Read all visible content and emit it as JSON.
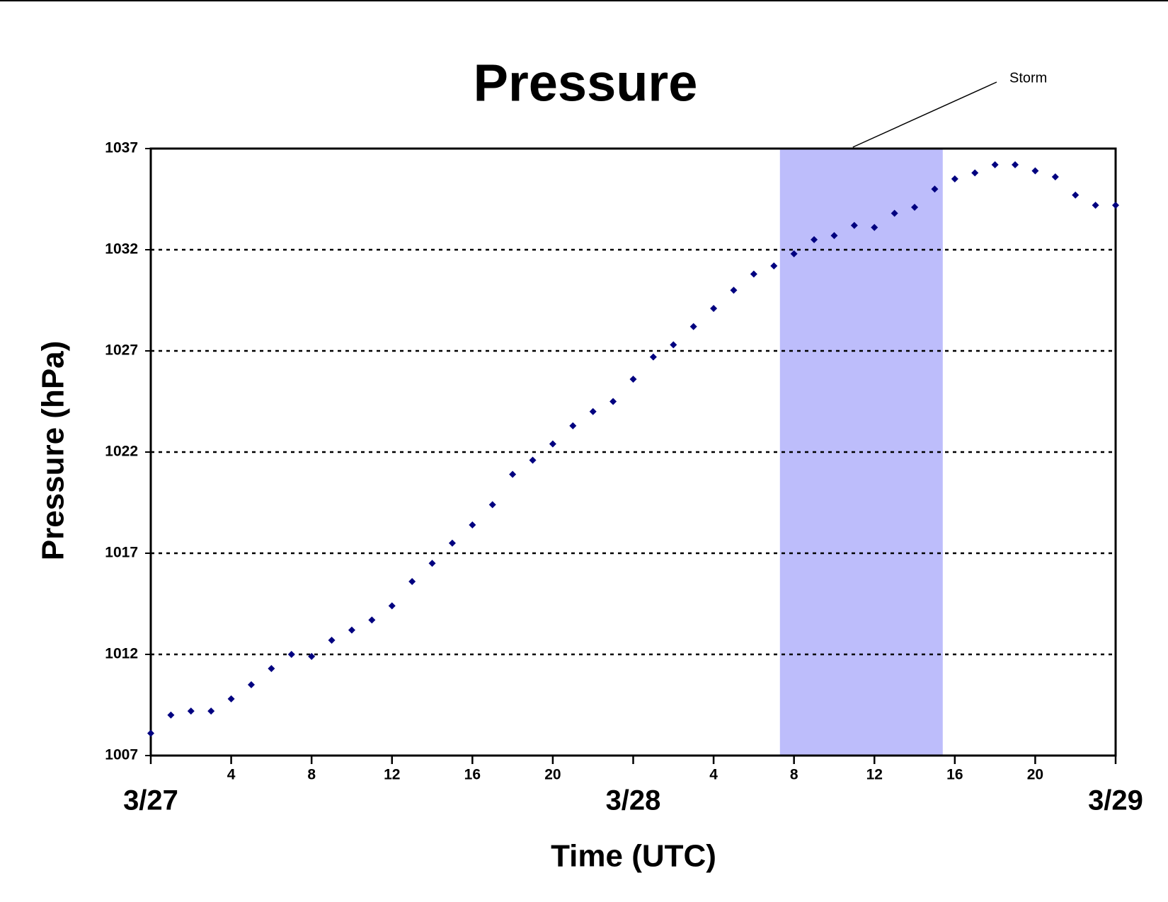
{
  "chart_data": {
    "type": "scatter",
    "title": "Pressure",
    "x_label": "Time (UTC)",
    "y_label": "Pressure (hPa)",
    "x": [
      0,
      1,
      2,
      3,
      4,
      5,
      6,
      7,
      8,
      9,
      10,
      11,
      12,
      13,
      14,
      15,
      16,
      17,
      18,
      19,
      20,
      21,
      22,
      23,
      24,
      25,
      26,
      27,
      28,
      29,
      30,
      31,
      32,
      33,
      34,
      35,
      36,
      37,
      38,
      39,
      40,
      41,
      42,
      43,
      44,
      45,
      46,
      47,
      48
    ],
    "series": [
      {
        "color": "#000080",
        "values": [
          1008.1,
          1009.0,
          1009.2,
          1009.2,
          1009.8,
          1010.5,
          1011.3,
          1012.0,
          1011.9,
          1012.7,
          1013.2,
          1013.7,
          1014.4,
          1015.6,
          1016.5,
          1017.5,
          1018.4,
          1019.4,
          1020.9,
          1021.6,
          1022.4,
          1023.3,
          1024.0,
          1024.5,
          1025.6,
          1026.7,
          1027.3,
          1028.2,
          1029.1,
          1030.0,
          1030.8,
          1031.2,
          1031.8,
          1032.5,
          1032.7,
          1033.2,
          1033.1,
          1033.8,
          1034.1,
          1035.0,
          1035.5,
          1035.8,
          1036.2,
          1036.2,
          1035.9,
          1035.6,
          1034.7,
          1034.2,
          1034.2
        ]
      }
    ],
    "xlim": [
      0,
      48
    ],
    "xticks": [
      {
        "value": 0,
        "label": "3/27"
      },
      4,
      8,
      12,
      16,
      20,
      {
        "value": 24,
        "label": "3/28"
      },
      {
        "value": 28,
        "label": "4"
      },
      {
        "value": 32,
        "label": "8"
      },
      {
        "value": 36,
        "label": "12"
      },
      {
        "value": 40,
        "label": "16"
      },
      {
        "value": 44,
        "label": "20"
      },
      {
        "value": 48,
        "label": "3/29"
      }
    ],
    "ylim": [
      1007,
      1037
    ],
    "yticks": [
      1007,
      1012,
      1017,
      1022,
      1027,
      1032,
      1037
    ],
    "grid": true,
    "annotations": [
      {
        "text": "Storm",
        "x_range": [
          31.3,
          39.4
        ],
        "color": "#bdbdfb"
      }
    ]
  }
}
